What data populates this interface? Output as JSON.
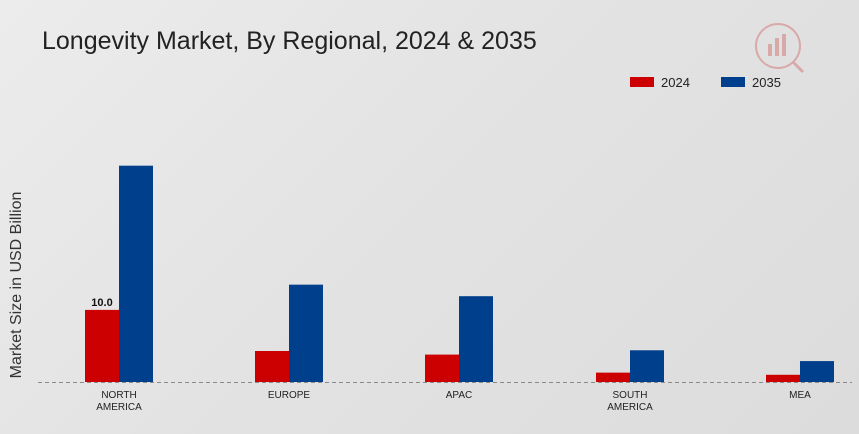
{
  "chart_data": {
    "type": "bar",
    "title": "Longevity Market, By Regional, 2024 & 2035",
    "xlabel": "",
    "ylabel": "Market Size in USD Billion",
    "categories": [
      "NORTH AMERICA",
      "EUROPE",
      "APAC",
      "SOUTH AMERICA",
      "MEA"
    ],
    "category_lines": [
      [
        "NORTH",
        "AMERICA"
      ],
      [
        "EUROPE"
      ],
      [
        "APAC"
      ],
      [
        "SOUTH",
        "AMERICA"
      ],
      [
        "MEA"
      ]
    ],
    "series": [
      {
        "name": "2024",
        "color": "#cc0000",
        "values": [
          10.0,
          4.3,
          3.8,
          1.3,
          1.0
        ]
      },
      {
        "name": "2035",
        "color": "#003f8c",
        "values": [
          30.0,
          13.5,
          11.9,
          4.4,
          2.9
        ]
      }
    ],
    "data_labels": [
      {
        "series": 0,
        "index": 0,
        "text": "10.0"
      }
    ],
    "ylim": [
      0,
      38
    ],
    "grid": false,
    "legend_position": "top-right",
    "baseline": "dashed"
  }
}
